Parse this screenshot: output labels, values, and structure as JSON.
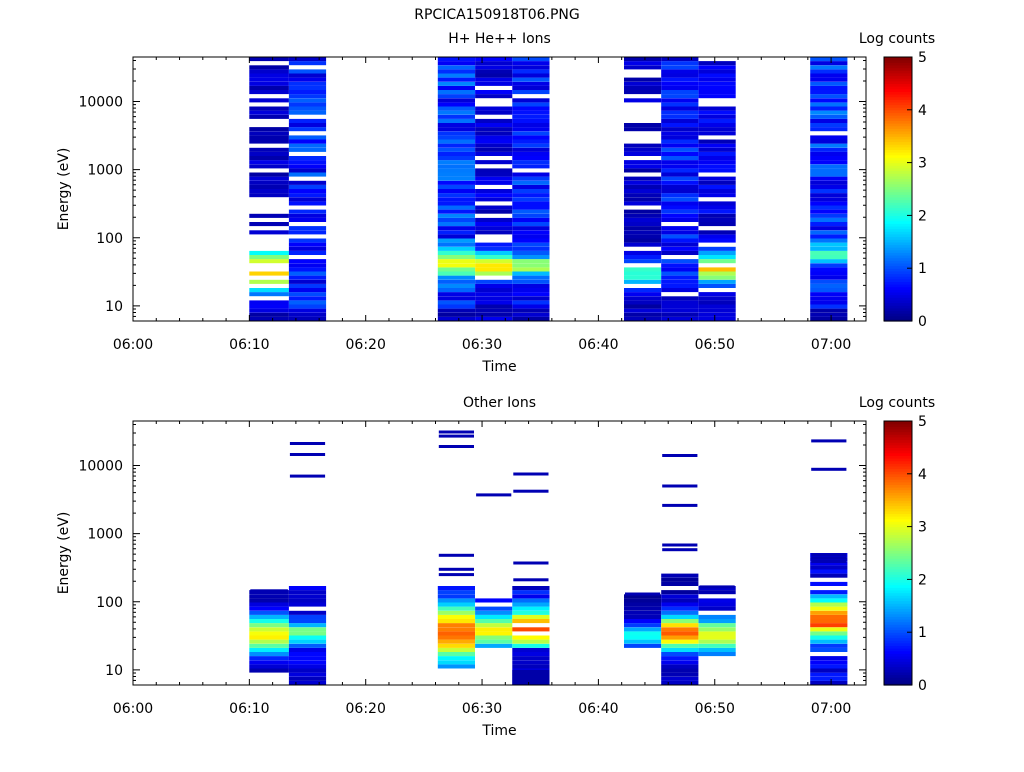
{
  "figure_title": "RPCICA150918T06.PNG",
  "chart_data": [
    {
      "type": "heatmap",
      "title": "H+ He++ Ions",
      "xlabel": "Time",
      "ylabel": "Energy (eV)",
      "yscale": "log",
      "ylim": [
        6,
        45000
      ],
      "xlim_minutes": [
        0,
        63
      ],
      "xticks": [
        "06:00",
        "06:10",
        "06:20",
        "06:30",
        "06:40",
        "06:50",
        "07:00"
      ],
      "yticks": [
        "10",
        "100",
        "1000",
        "10000"
      ],
      "colorbar": {
        "label": "Log counts",
        "min": 0,
        "max": 5,
        "ticks": [
          "0",
          "1",
          "2",
          "3",
          "4",
          "5"
        ],
        "colormap": "jet"
      },
      "grid": false,
      "columns": [
        {
          "t": [
            10.0,
            13.4
          ],
          "seed": 11,
          "emin": 6,
          "emax": 42000,
          "density": 0.62,
          "cutoff": 9,
          "peakE": 33,
          "peakW": 0.22,
          "peakLevel": 3.2,
          "base": 0.4
        },
        {
          "t": [
            13.4,
            16.6
          ],
          "seed": 23,
          "emin": 6,
          "emax": 42000,
          "density": 0.85,
          "cutoff": 9,
          "peakE": 60,
          "peakW": 0.0,
          "peakLevel": 0.0,
          "base": 0.9
        },
        {
          "t": [
            26.2,
            29.4
          ],
          "seed": 37,
          "emin": 6,
          "emax": 42000,
          "density": 0.98,
          "cutoff": 9,
          "peakE": 42,
          "peakW": 0.14,
          "peakLevel": 1.8,
          "base": 1.0
        },
        {
          "t": [
            29.4,
            32.6
          ],
          "seed": 41,
          "emin": 6,
          "emax": 42000,
          "density": 0.78,
          "cutoff": 20,
          "peakE": 38,
          "peakW": 0.14,
          "peakLevel": 2.8,
          "base": 0.5
        },
        {
          "t": [
            32.6,
            35.8
          ],
          "seed": 53,
          "emin": 6,
          "emax": 42000,
          "density": 0.96,
          "cutoff": 9,
          "peakE": 38,
          "peakW": 0.1,
          "peakLevel": 2.0,
          "base": 0.9
        },
        {
          "t": [
            42.2,
            45.4
          ],
          "seed": 67,
          "emin": 6,
          "emax": 42000,
          "density": 0.72,
          "cutoff": 14,
          "peakE": 30,
          "peakW": 0.14,
          "peakLevel": 1.8,
          "base": 0.4
        },
        {
          "t": [
            45.4,
            48.6
          ],
          "seed": 71,
          "emin": 6,
          "emax": 42000,
          "density": 0.95,
          "cutoff": 14,
          "peakE": 60,
          "peakW": 0.0,
          "peakLevel": 0.0,
          "base": 0.8
        },
        {
          "t": [
            48.6,
            51.8
          ],
          "seed": 83,
          "emin": 6,
          "emax": 40000,
          "density": 0.82,
          "cutoff": 16,
          "peakE": 35,
          "peakW": 0.14,
          "peakLevel": 2.8,
          "base": 0.6
        },
        {
          "t": [
            58.2,
            61.4
          ],
          "seed": 97,
          "emin": 6,
          "emax": 42000,
          "density": 0.97,
          "cutoff": 9,
          "peakE": 55,
          "peakW": 0.09,
          "peakLevel": 1.8,
          "base": 1.0
        }
      ]
    },
    {
      "type": "heatmap",
      "title": "Other Ions",
      "xlabel": "Time",
      "ylabel": "Energy (eV)",
      "yscale": "log",
      "ylim": [
        6,
        45000
      ],
      "xlim_minutes": [
        0,
        63
      ],
      "xticks": [
        "06:00",
        "06:10",
        "06:20",
        "06:30",
        "06:40",
        "06:50",
        "07:00"
      ],
      "yticks": [
        "10",
        "100",
        "1000",
        "10000"
      ],
      "colorbar": {
        "label": "Log counts",
        "min": 0,
        "max": 5,
        "ticks": [
          "0",
          "1",
          "2",
          "3",
          "4",
          "5"
        ],
        "colormap": "jet"
      },
      "grid": false,
      "columns": [
        {
          "t": [
            10.0,
            13.4
          ],
          "seed": 111,
          "emin": 9,
          "emax": 150,
          "density": 1.0,
          "cutoff": 9,
          "peakE": 33,
          "peakW": 0.2,
          "peakLevel": 3.0,
          "base": 0.2,
          "lines": [
            145,
            122
          ]
        },
        {
          "t": [
            13.4,
            16.6
          ],
          "seed": 123,
          "emin": 6,
          "emax": 170,
          "density": 0.92,
          "cutoff": 6,
          "peakE": 35,
          "peakW": 0.12,
          "peakLevel": 2.0,
          "base": 0.5,
          "lines": [
            21000,
            14500,
            7000
          ]
        },
        {
          "t": [
            26.2,
            29.4
          ],
          "seed": 137,
          "emin": 10,
          "emax": 170,
          "density": 1.0,
          "cutoff": 10,
          "peakE": 35,
          "peakW": 0.3,
          "peakLevel": 3.6,
          "base": 0.4,
          "lines": [
            31000,
            27000,
            19000,
            480,
            300,
            250
          ]
        },
        {
          "t": [
            29.4,
            32.6
          ],
          "seed": 141,
          "emin": 22,
          "emax": 110,
          "density": 0.95,
          "cutoff": 22,
          "peakE": 38,
          "peakW": 0.18,
          "peakLevel": 2.8,
          "base": 0.4,
          "lines": [
            3700
          ]
        },
        {
          "t": [
            32.6,
            35.8
          ],
          "seed": 153,
          "emin": 6,
          "emax": 160,
          "density": 0.95,
          "cutoff": 20,
          "peakE": 40,
          "peakW": 0.2,
          "peakLevel": 3.4,
          "base": 0.6,
          "lines": [
            7500,
            4200,
            370,
            210
          ],
          "lowBlock": [
            6,
            10
          ]
        },
        {
          "t": [
            42.2,
            45.4
          ],
          "seed": 167,
          "emin": 20,
          "emax": 130,
          "density": 0.95,
          "cutoff": 20,
          "peakE": 32,
          "peakW": 0.12,
          "peakLevel": 1.8,
          "base": 0.2,
          "lines": [
            130
          ]
        },
        {
          "t": [
            45.4,
            48.6
          ],
          "seed": 171,
          "emin": 6,
          "emax": 250,
          "density": 0.95,
          "cutoff": 6,
          "peakE": 35,
          "peakW": 0.18,
          "peakLevel": 3.6,
          "base": 0.3,
          "lines": [
            14000,
            5000,
            2600,
            680,
            580
          ]
        },
        {
          "t": [
            48.6,
            51.8
          ],
          "seed": 183,
          "emin": 16,
          "emax": 170,
          "density": 0.95,
          "cutoff": 16,
          "peakE": 32,
          "peakW": 0.16,
          "peakLevel": 2.8,
          "base": 0.5,
          "lines": [
            165
          ]
        },
        {
          "t": [
            58.2,
            61.4
          ],
          "seed": 197,
          "emin": 6,
          "emax": 500,
          "density": 0.97,
          "cutoff": 6,
          "peakE": 55,
          "peakW": 0.2,
          "peakLevel": 3.6,
          "base": 0.6,
          "lines": [
            23000,
            8800,
            490,
            440,
            390
          ]
        }
      ]
    }
  ]
}
